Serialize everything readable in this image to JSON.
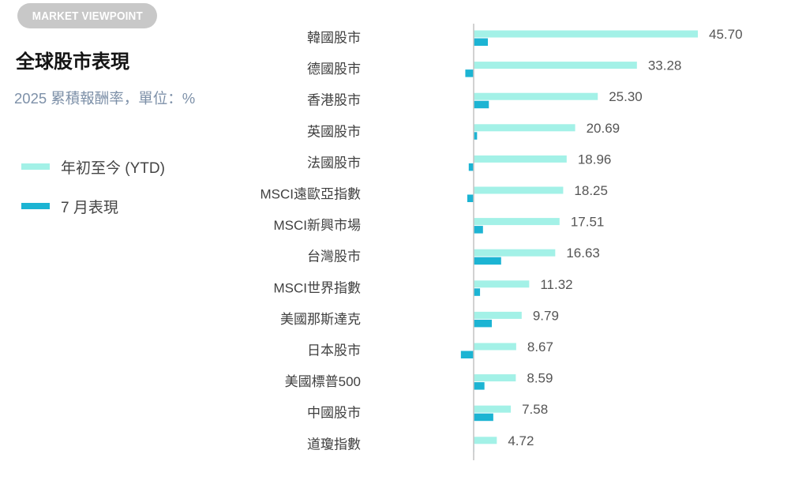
{
  "badge": {
    "label": "MARKET VIEWPOINT"
  },
  "chart_data": {
    "type": "bar",
    "orientation": "horizontal",
    "title": "全球股市表現",
    "subtitle": "2025 累積報酬率，單位：%",
    "categories": [
      "韓國股市",
      "德國股市",
      "香港股市",
      "英國股市",
      "法國股市",
      "MSCI遠歐亞指數",
      "MSCI新興市場",
      "台灣股市",
      "MSCI世界指數",
      "美國那斯達克",
      "日本股市",
      "美國標普500",
      "中國股市",
      "道瓊指數"
    ],
    "series": [
      {
        "name": "年初至今 (YTD)",
        "color": "#a3f1e7",
        "data_labels": true,
        "values": [
          45.7,
          33.28,
          25.3,
          20.69,
          18.96,
          18.25,
          17.51,
          16.63,
          11.32,
          9.79,
          8.67,
          8.59,
          7.58,
          4.72
        ]
      },
      {
        "name": "7 月表現",
        "color": "#1cb4d3",
        "data_labels": false,
        "values": [
          2.9,
          -1.7,
          3.1,
          0.7,
          -1.0,
          -1.3,
          1.9,
          5.6,
          1.3,
          3.7,
          -2.6,
          2.2,
          4.0,
          0.1
        ]
      }
    ],
    "grid": false,
    "legend_position": "left",
    "zero_line": true
  }
}
